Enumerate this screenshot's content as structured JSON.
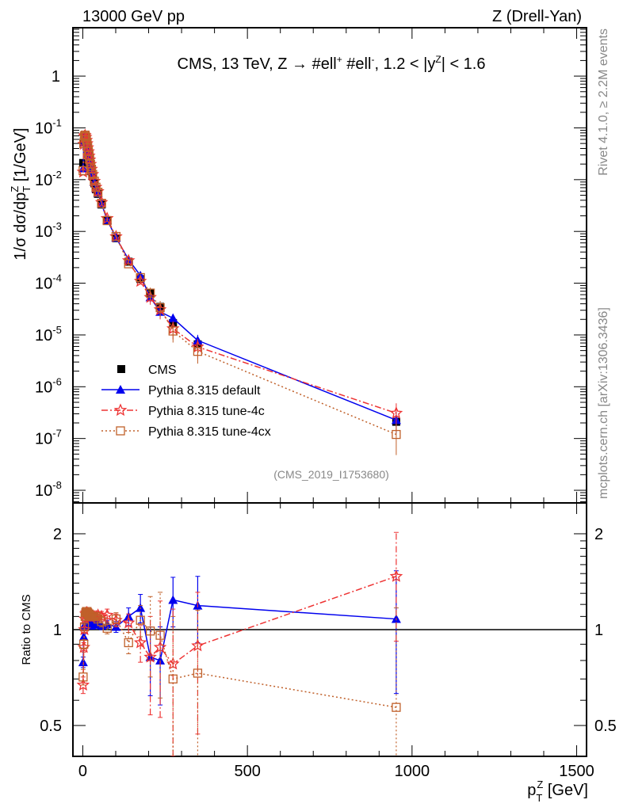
{
  "header": {
    "left": "13000 GeV pp",
    "right": "Z (Drell-Yan)"
  },
  "side_text": {
    "rivet": "Rivet 4.1.0, ≥ 2.2M events",
    "mcplots": "mcplots.cern.ch [arXiv:1306.3436]"
  },
  "chart_data": {
    "type": "scatter",
    "title_parts": [
      "CMS, 13 TeV, Z →  #ell",
      "+",
      " #ell",
      "-",
      ", 1.2 < |y",
      "Z",
      "| < 1.6"
    ],
    "ylabel_parts": [
      "1/σ dσ/dp",
      "T",
      "Z",
      " [1/GeV]"
    ],
    "xlabel_parts": [
      "p",
      "T",
      "Z",
      " [GeV]"
    ],
    "ratio_ylabel": "Ratio to CMS",
    "analysis_label": "(CMS_2019_I1753680)",
    "xlim": [
      -30,
      1530
    ],
    "ylim": [
      5.7e-09,
      8.6
    ],
    "yscale": "log",
    "ratio_ylim": [
      0.4,
      2.5
    ],
    "ratio_yscale": "log",
    "xticks": [
      0,
      500,
      1000,
      1500
    ],
    "xtick_labels": [
      "0",
      "500",
      "1000",
      "1500"
    ],
    "yticks": [
      1,
      0.1,
      0.01,
      0.001,
      0.0001,
      1e-05,
      1e-06,
      1e-07,
      1e-08
    ],
    "ytick_labels": [
      [
        "1",
        ""
      ],
      [
        "10",
        "-1"
      ],
      [
        "10",
        "-2"
      ],
      [
        "10",
        "-3"
      ],
      [
        "10",
        "-4"
      ],
      [
        "10",
        "-5"
      ],
      [
        "10",
        "-6"
      ],
      [
        "10",
        "-7"
      ],
      [
        "10",
        "-8"
      ]
    ],
    "ratio_yticks": [
      0.5,
      1,
      2
    ],
    "ratio_ytick_labels": [
      "0.5",
      "1",
      "2"
    ],
    "legend_position": "lower-left",
    "x": [
      1,
      3,
      5,
      7,
      9,
      11,
      13,
      15,
      17,
      19,
      21,
      23.5,
      26.5,
      30,
      35,
      40,
      46,
      57,
      74,
      101,
      139,
      175,
      205,
      235,
      274,
      349,
      952
    ],
    "data": {
      "name": "CMS",
      "color": "#000000",
      "values": [
        0.021,
        0.055,
        0.068,
        0.066,
        0.059,
        0.051,
        0.044,
        0.037,
        0.031,
        0.026,
        0.022,
        0.018,
        0.0145,
        0.0115,
        0.0085,
        0.0065,
        0.0053,
        0.0033,
        0.0016,
        0.00074,
        0.00026,
        0.00012,
        6.5e-05,
        3.5e-05,
        1.7e-05,
        6.6e-06,
        2.1e-07
      ]
    },
    "series": [
      {
        "name": "Pythia 8.315 default",
        "color": "#0000ee",
        "marker": "triangle",
        "line": "solid",
        "ratio": [
          0.79,
          0.95,
          1.02,
          1.04,
          1.05,
          1.05,
          1.05,
          1.04,
          1.04,
          1.04,
          1.03,
          1.03,
          1.03,
          1.04,
          1.05,
          1.05,
          1.04,
          1.03,
          1.04,
          1.02,
          1.1,
          1.17,
          0.82,
          0.8,
          1.24,
          1.19,
          1.08
        ],
        "ratio_err": [
          0.03,
          0.02,
          0.02,
          0.02,
          0.02,
          0.02,
          0.02,
          0.02,
          0.02,
          0.02,
          0.02,
          0.02,
          0.02,
          0.02,
          0.02,
          0.02,
          0.03,
          0.03,
          0.03,
          0.04,
          0.07,
          0.12,
          0.2,
          0.22,
          0.22,
          0.28,
          0.45
        ]
      },
      {
        "name": "Pythia 8.315 tune-4c",
        "color": "#ee3333",
        "marker": "star",
        "line": "dashdot",
        "ratio": [
          0.67,
          0.88,
          1.0,
          1.08,
          1.12,
          1.13,
          1.13,
          1.12,
          1.12,
          1.11,
          1.1,
          1.1,
          1.1,
          1.1,
          1.1,
          1.1,
          1.11,
          1.1,
          1.11,
          1.07,
          1.05,
          0.91,
          0.82,
          0.88,
          0.78,
          0.89,
          1.47
        ],
        "ratio_err": [
          0.04,
          0.03,
          0.02,
          0.02,
          0.02,
          0.02,
          0.02,
          0.02,
          0.02,
          0.02,
          0.02,
          0.02,
          0.02,
          0.02,
          0.02,
          0.02,
          0.03,
          0.04,
          0.05,
          0.05,
          0.07,
          0.12,
          0.28,
          0.35,
          0.38,
          0.42,
          0.55
        ]
      },
      {
        "name": "Pythia 8.315 tune-4cx",
        "color": "#c0602a",
        "marker": "open-square",
        "line": "dotted",
        "ratio": [
          0.71,
          0.9,
          1.02,
          1.1,
          1.13,
          1.14,
          1.14,
          1.13,
          1.12,
          1.12,
          1.11,
          1.1,
          1.1,
          1.1,
          1.1,
          1.1,
          1.08,
          1.06,
          1.01,
          1.08,
          0.91,
          1.07,
          0.99,
          0.96,
          0.7,
          0.73,
          0.57
        ],
        "ratio_err": [
          0.04,
          0.03,
          0.02,
          0.02,
          0.02,
          0.02,
          0.02,
          0.02,
          0.02,
          0.02,
          0.02,
          0.02,
          0.02,
          0.02,
          0.02,
          0.02,
          0.03,
          0.04,
          0.04,
          0.05,
          0.07,
          0.12,
          0.28,
          0.35,
          0.4,
          0.42,
          0.6
        ]
      }
    ]
  }
}
